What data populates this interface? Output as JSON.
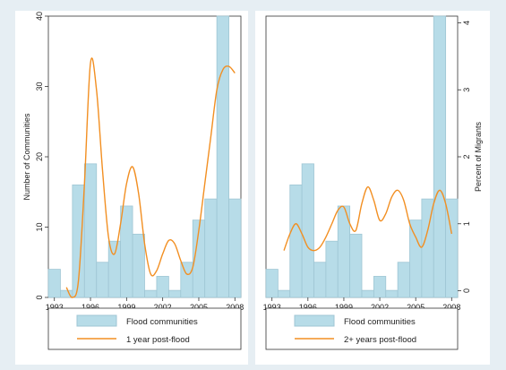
{
  "colors": {
    "frame": "#e6eef3",
    "bar_fill": "#b7dce8",
    "bar_stroke": "#9fc6d4",
    "line": "#f28f22",
    "axis": "#333333"
  },
  "chart_data": [
    {
      "type": "bar",
      "ylabel": "Number of Communities",
      "ylim": [
        0,
        40
      ],
      "yticks": [
        0,
        10,
        20,
        30,
        40
      ],
      "xlim": [
        1992.5,
        2008.5
      ],
      "xticks": [
        1993,
        1996,
        1999,
        2002,
        2005,
        2008
      ],
      "grid": false,
      "bar_series": {
        "name": "Flood communities",
        "x": [
          1993,
          1994,
          1995,
          1996,
          1997,
          1998,
          1999,
          2000,
          2001,
          2002,
          2003,
          2004,
          2005,
          2006,
          2007,
          2008
        ],
        "values": [
          4,
          1,
          16,
          19,
          5,
          8,
          13,
          9,
          1,
          3,
          1,
          5,
          11,
          14,
          40,
          14
        ]
      },
      "line_series": {
        "name": "1 year post-flood",
        "axis": "percent",
        "x": [
          1994,
          1994.5,
          1995,
          1995.5,
          1996,
          1996.5,
          1997,
          1997.5,
          1998,
          1998.5,
          1999,
          1999.5,
          2000,
          2000.5,
          2001,
          2001.5,
          2002,
          2002.5,
          2003,
          2003.5,
          2004,
          2004.5,
          2005,
          2005.5,
          2006,
          2006.5,
          2007,
          2007.5,
          2008
        ],
        "y": [
          0.05,
          -0.1,
          0.15,
          1.6,
          3.4,
          3.0,
          1.8,
          0.8,
          0.55,
          1.0,
          1.6,
          1.85,
          1.45,
          0.7,
          0.25,
          0.3,
          0.55,
          0.75,
          0.7,
          0.45,
          0.25,
          0.35,
          0.9,
          1.6,
          2.3,
          3.0,
          3.3,
          3.35,
          3.25
        ]
      },
      "percent_ylim": [
        -0.1,
        4.1
      ],
      "legend": {
        "placement": "bottom"
      }
    },
    {
      "type": "bar",
      "ylabel": "Percent of Migrants",
      "y_axis_side": "right",
      "ylim": [
        0,
        40
      ],
      "percent_ylim": [
        -0.1,
        4.1
      ],
      "percent_yticks": [
        0,
        1,
        2,
        3,
        4
      ],
      "xlim": [
        1992.5,
        2008.5
      ],
      "xticks": [
        1993,
        1996,
        1999,
        2002,
        2005,
        2008
      ],
      "grid": false,
      "bar_series": {
        "name": "Flood communities",
        "x": [
          1993,
          1994,
          1995,
          1996,
          1997,
          1998,
          1999,
          2000,
          2001,
          2002,
          2003,
          2004,
          2005,
          2006,
          2007,
          2008
        ],
        "values": [
          4,
          1,
          16,
          19,
          5,
          8,
          13,
          9,
          1,
          3,
          1,
          5,
          11,
          14,
          40,
          14
        ]
      },
      "line_series": {
        "name": "2+ years post-flood",
        "axis": "percent",
        "x": [
          1994,
          1994.5,
          1995,
          1995.5,
          1996,
          1996.5,
          1997,
          1997.5,
          1998,
          1998.5,
          1999,
          1999.5,
          2000,
          2000.5,
          2001,
          2001.5,
          2002,
          2002.5,
          2003,
          2003.5,
          2004,
          2004.5,
          2005,
          2005.5,
          2006,
          2006.5,
          2007,
          2007.5,
          2008
        ],
        "y": [
          0.6,
          0.85,
          1.0,
          0.85,
          0.65,
          0.6,
          0.65,
          0.8,
          1.0,
          1.2,
          1.25,
          1.0,
          0.9,
          1.3,
          1.55,
          1.35,
          1.05,
          1.15,
          1.4,
          1.5,
          1.35,
          1.0,
          0.8,
          0.65,
          0.9,
          1.3,
          1.5,
          1.3,
          0.85
        ]
      },
      "legend": {
        "placement": "bottom"
      }
    }
  ]
}
